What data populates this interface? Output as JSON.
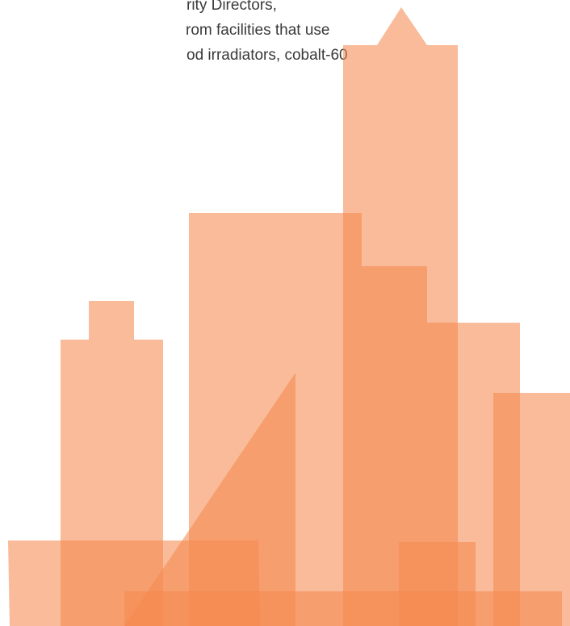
{
  "document": {
    "text_lines": [
      "rity Directors,",
      "rom facilities that use",
      "od irradiators, cobalt-60"
    ]
  },
  "illustration": {
    "name": "city skyline",
    "color": "#f58a4f"
  }
}
